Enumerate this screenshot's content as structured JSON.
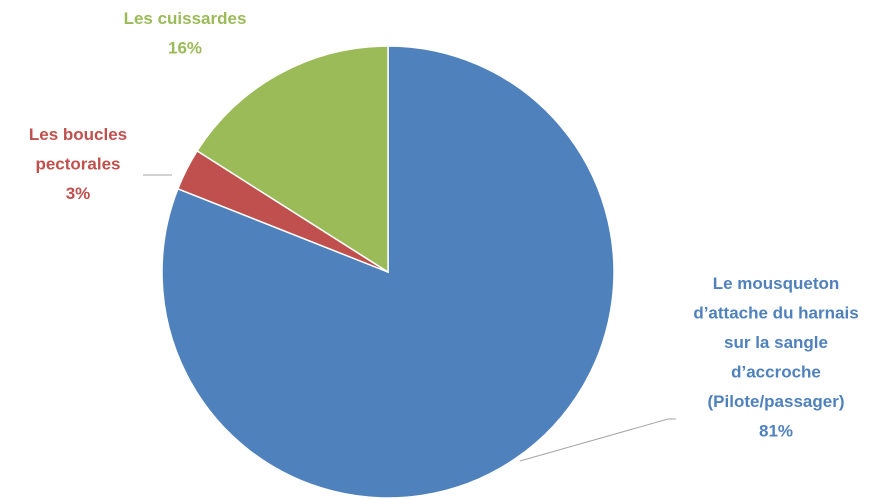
{
  "chart_data": {
    "type": "pie",
    "title": "",
    "slices": [
      {
        "label_lines": [
          "Le mousqueton",
          "d’attache du harnais",
          "sur la sangle",
          "d’accroche",
          "(Pilote/passager)"
        ],
        "value": 81,
        "value_label": "81%",
        "color": "#4f81bd"
      },
      {
        "label_lines": [
          "Les boucles",
          "pectorales"
        ],
        "value": 3,
        "value_label": "3%",
        "color": "#c0504d"
      },
      {
        "label_lines": [
          "Les cuissardes"
        ],
        "value": 16,
        "value_label": "16%",
        "color": "#9bbb59"
      }
    ],
    "start": "12 o'clock",
    "direction": "clockwise",
    "legend": "none",
    "leader_line_color": "#a6a6a6"
  }
}
